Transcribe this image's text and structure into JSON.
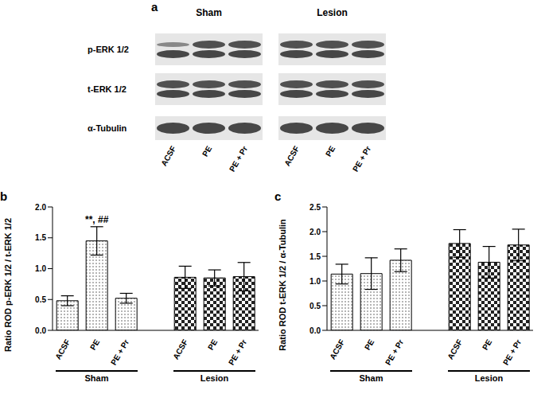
{
  "panel_a": {
    "label": "a",
    "rows": [
      "p-ERK 1/2",
      "t-ERK 1/2",
      "α-Tubulin"
    ],
    "groups": [
      {
        "label": "Sham",
        "lanes": [
          "ACSF",
          "PE",
          "PE + Pr"
        ]
      },
      {
        "label": "Lesion",
        "lanes": [
          "ACSF",
          "PE",
          "PE + Pr"
        ]
      }
    ]
  },
  "chart_data": [
    {
      "type": "bar",
      "panel": "b",
      "y_label": "Ratio ROD p-ERK 1/2 / t-ERK 1/2",
      "categories": [
        "ACSF",
        "PE",
        "PE + Pr",
        null,
        "ACSF",
        "PE",
        "PE + Pr"
      ],
      "values": [
        0.48,
        1.45,
        0.52,
        null,
        0.86,
        0.85,
        0.87
      ],
      "errors": [
        0.08,
        0.23,
        0.08,
        null,
        0.18,
        0.13,
        0.23
      ],
      "groups": [
        "Sham",
        "Lesion"
      ],
      "annotations": [
        {
          "text": "**, ##",
          "category_index": 1
        }
      ],
      "ylim": [
        0,
        2
      ],
      "yticks": [
        {
          "value": 0,
          "label": "0.0"
        },
        {
          "value": 0.5,
          "label": "0.5"
        },
        {
          "value": 1,
          "label": "1.0"
        },
        {
          "value": 1.5,
          "label": "1.5"
        },
        {
          "value": 2,
          "label": "2.0"
        }
      ]
    },
    {
      "type": "bar",
      "panel": "c",
      "y_label": "Ratio ROD t-ERK 1/2 / α-Tubulin",
      "categories": [
        "ACSF",
        "PE",
        "PE + Pr",
        null,
        "ACSF",
        "PE",
        "PE + Pr"
      ],
      "values": [
        1.14,
        1.15,
        1.42,
        null,
        1.76,
        1.38,
        1.73
      ],
      "errors": [
        0.2,
        0.32,
        0.23,
        null,
        0.28,
        0.32,
        0.32
      ],
      "groups": [
        "Sham",
        "Lesion"
      ],
      "annotations": [],
      "ylim": [
        0,
        2.5
      ],
      "yticks": [
        {
          "value": 0,
          "label": "0.0"
        },
        {
          "value": 0.5,
          "label": "0.5"
        },
        {
          "value": 1,
          "label": "1.0"
        },
        {
          "value": 1.5,
          "label": "1.5"
        },
        {
          "value": 2,
          "label": "2.0"
        },
        {
          "value": 2.5,
          "label": "2.5"
        }
      ]
    }
  ]
}
